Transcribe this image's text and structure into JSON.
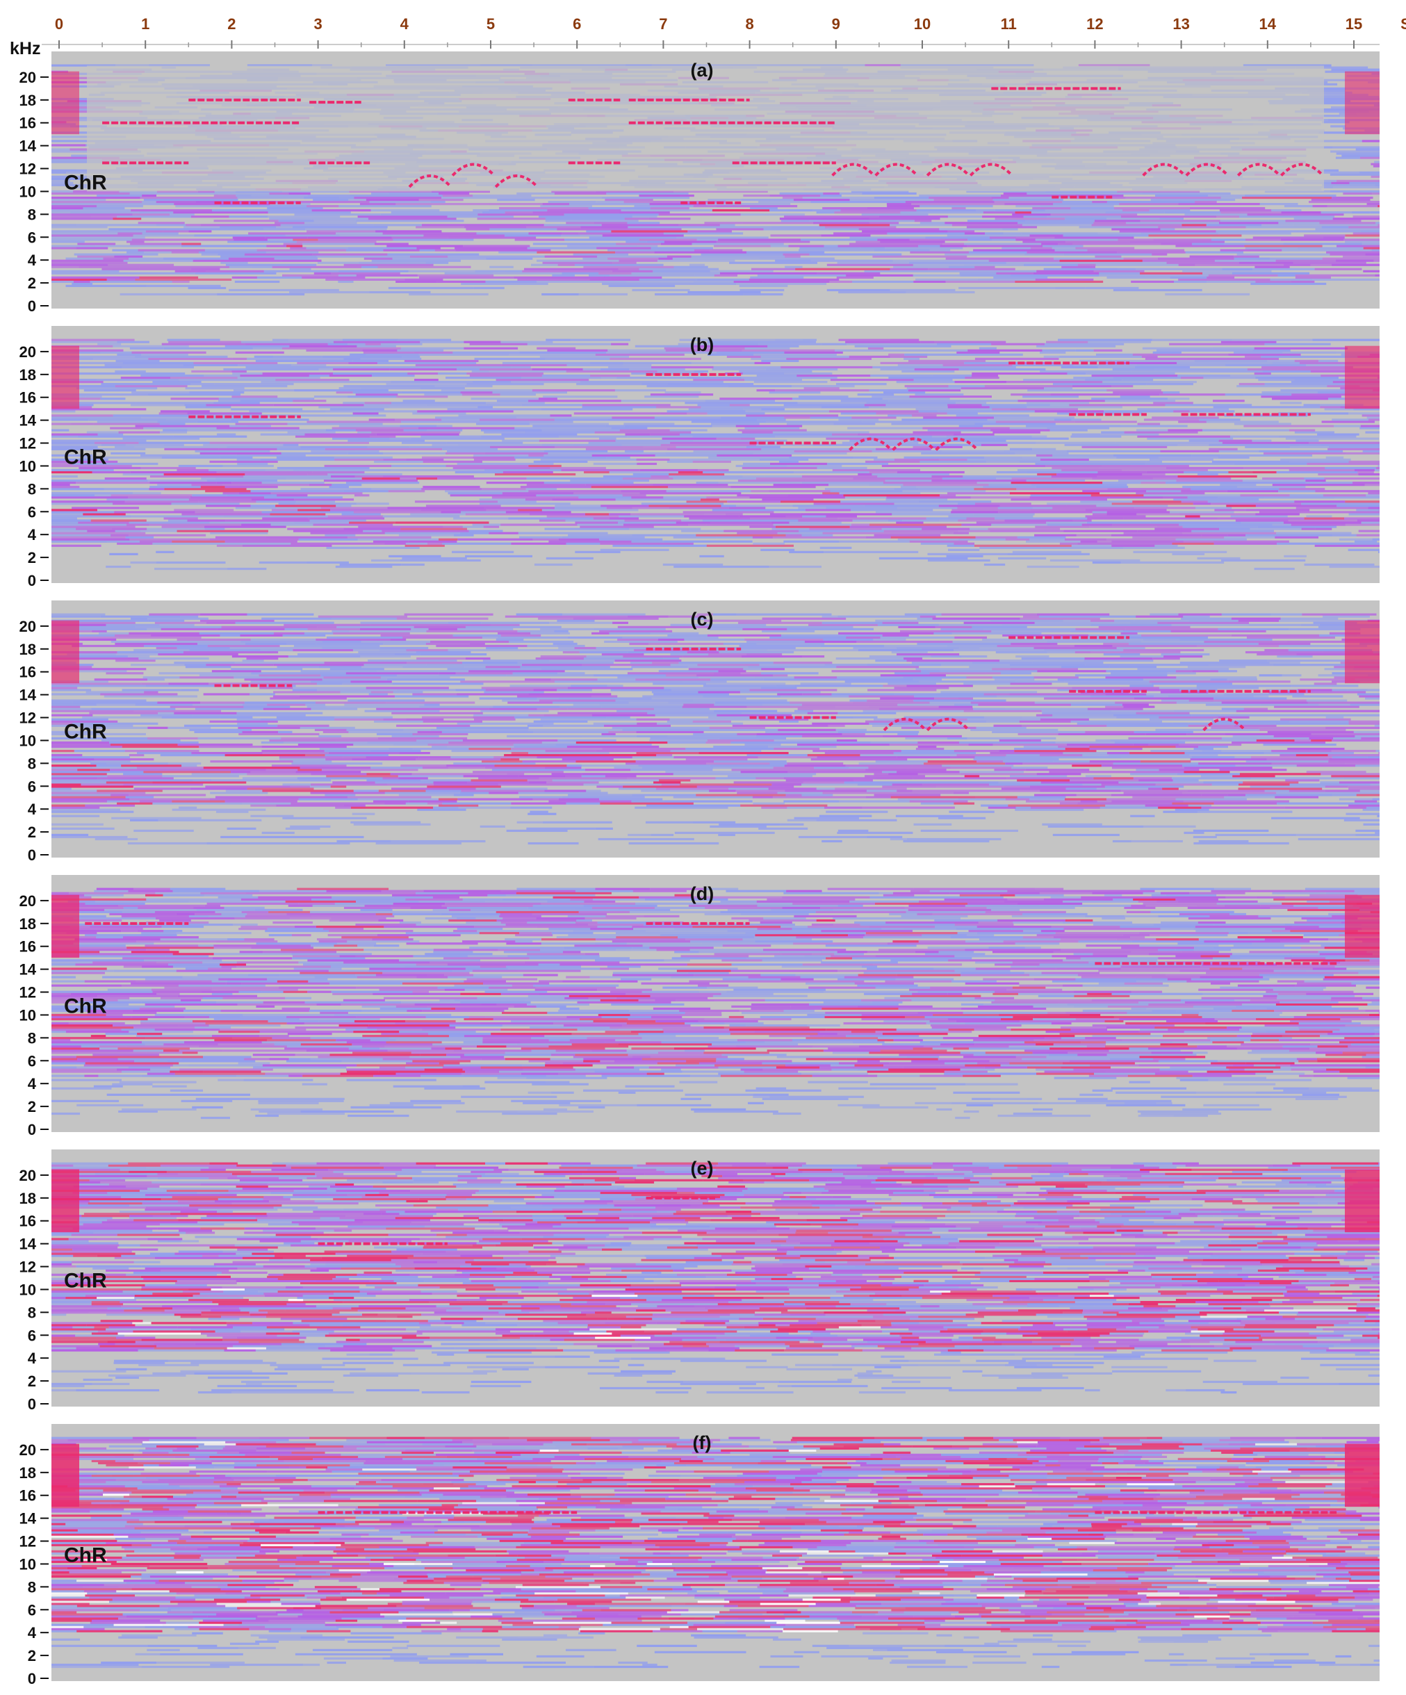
{
  "figure": {
    "time_unit": "S",
    "freq_unit": "kHz",
    "colors": {
      "background": "#c4c4c4",
      "low": "#8f9cf0",
      "mid": "#b45be6",
      "high": "#ea2a6e",
      "peak": "#ffffff",
      "time_tick": "#8b3a0e",
      "freq_tick": "#111111"
    }
  },
  "chart_data": {
    "type": "heatmap",
    "x_axis": {
      "ticks": [
        "0",
        "1",
        "2",
        "3",
        "4",
        "5",
        "6",
        "7",
        "8",
        "9",
        "10",
        "11",
        "12",
        "13",
        "14",
        "15"
      ],
      "unit": "S",
      "range": [
        0,
        15.2
      ]
    },
    "y_axis": {
      "ticks": [
        "0",
        "2",
        "4",
        "6",
        "8",
        "10",
        "12",
        "14",
        "16",
        "18",
        "20"
      ],
      "unit": "kHz",
      "range": [
        0,
        22
      ]
    },
    "panels": [
      {
        "label": "(a)",
        "channel": "ChR",
        "intensity": 0.12,
        "floor_khz": 2,
        "tones": [
          {
            "t0": 0.5,
            "t1": 1.5,
            "f": 12.5
          },
          {
            "t0": 1.5,
            "t1": 2.8,
            "f": 18
          },
          {
            "t0": 0.5,
            "t1": 2.8,
            "f": 16
          },
          {
            "t0": 2.9,
            "t1": 3.5,
            "f": 17.8
          },
          {
            "t0": 2.9,
            "t1": 3.6,
            "f": 12.5
          },
          {
            "t0": 5.9,
            "t1": 6.5,
            "f": 12.5
          },
          {
            "t0": 5.9,
            "t1": 6.5,
            "f": 18
          },
          {
            "t0": 6.6,
            "t1": 8.0,
            "f": 18
          },
          {
            "t0": 6.6,
            "t1": 9.0,
            "f": 16
          },
          {
            "t0": 7.8,
            "t1": 9.0,
            "f": 12.5
          },
          {
            "t0": 7.2,
            "t1": 7.9,
            "f": 9
          },
          {
            "t0": 1.8,
            "t1": 2.8,
            "f": 9
          },
          {
            "t0": 10.8,
            "t1": 12.3,
            "f": 19
          },
          {
            "t0": 11.5,
            "t1": 12.2,
            "f": 9.5
          }
        ],
        "arcs": [
          {
            "t": 4.3,
            "f": 11
          },
          {
            "t": 4.8,
            "f": 12
          },
          {
            "t": 5.3,
            "f": 11
          },
          {
            "t": 9.2,
            "f": 12
          },
          {
            "t": 9.7,
            "f": 12
          },
          {
            "t": 10.3,
            "f": 12
          },
          {
            "t": 10.8,
            "f": 12
          },
          {
            "t": 12.8,
            "f": 12
          },
          {
            "t": 13.3,
            "f": 12
          },
          {
            "t": 13.9,
            "f": 12
          },
          {
            "t": 14.4,
            "f": 12
          }
        ]
      },
      {
        "label": "(b)",
        "channel": "ChR",
        "intensity": 0.3,
        "floor_khz": 3,
        "tones": [
          {
            "t0": 1.5,
            "t1": 2.8,
            "f": 14.3
          },
          {
            "t0": 6.8,
            "t1": 7.9,
            "f": 18
          },
          {
            "t0": 8.0,
            "t1": 9.0,
            "f": 12
          },
          {
            "t0": 11.0,
            "t1": 12.4,
            "f": 19
          },
          {
            "t0": 11.7,
            "t1": 12.6,
            "f": 14.5
          },
          {
            "t0": 13.0,
            "t1": 14.5,
            "f": 14.5
          }
        ],
        "arcs": [
          {
            "t": 9.4,
            "f": 12
          },
          {
            "t": 9.9,
            "f": 12
          },
          {
            "t": 10.4,
            "f": 12
          }
        ]
      },
      {
        "label": "(c)",
        "channel": "ChR",
        "intensity": 0.38,
        "floor_khz": 4,
        "tones": [
          {
            "t0": 1.8,
            "t1": 2.7,
            "f": 14.8
          },
          {
            "t0": 6.8,
            "t1": 7.9,
            "f": 18
          },
          {
            "t0": 8.0,
            "t1": 9.0,
            "f": 12
          },
          {
            "t0": 11.0,
            "t1": 12.4,
            "f": 19
          },
          {
            "t0": 11.7,
            "t1": 12.6,
            "f": 14.3
          },
          {
            "t0": 13.0,
            "t1": 14.5,
            "f": 14.3
          }
        ],
        "arcs": [
          {
            "t": 9.8,
            "f": 11.5
          },
          {
            "t": 10.3,
            "f": 11.5
          },
          {
            "t": 13.5,
            "f": 11.5
          }
        ]
      },
      {
        "label": "(d)",
        "channel": "ChR",
        "intensity": 0.6,
        "floor_khz": 4.5,
        "tones": [
          {
            "t0": 0.3,
            "t1": 1.5,
            "f": 18
          },
          {
            "t0": 6.8,
            "t1": 8.0,
            "f": 18
          },
          {
            "t0": 12.0,
            "t1": 14.8,
            "f": 14.5
          }
        ],
        "arcs": []
      },
      {
        "label": "(e)",
        "channel": "ChR",
        "intensity": 0.82,
        "floor_khz": 4.5,
        "tones": [
          {
            "t0": 3.0,
            "t1": 4.5,
            "f": 14
          },
          {
            "t0": 6.8,
            "t1": 7.6,
            "f": 18
          }
        ],
        "arcs": []
      },
      {
        "label": "(f)",
        "channel": "ChR",
        "intensity": 1.0,
        "floor_khz": 4,
        "tones": [
          {
            "t0": 3.0,
            "t1": 6.0,
            "f": 14.5
          },
          {
            "t0": 12.0,
            "t1": 14.8,
            "f": 14.5
          }
        ],
        "arcs": []
      }
    ]
  }
}
